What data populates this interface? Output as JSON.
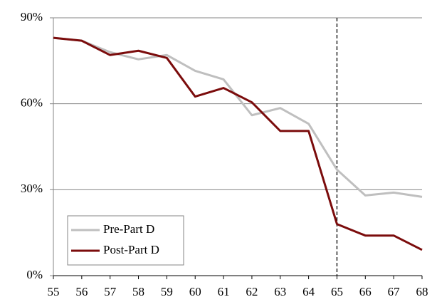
{
  "chart_data": {
    "type": "line",
    "x": [
      55,
      56,
      57,
      58,
      59,
      60,
      61,
      62,
      63,
      64,
      65,
      66,
      67,
      68
    ],
    "series": [
      {
        "name": "Pre-Part D",
        "color": "#bfbfbf",
        "values": [
          83,
          82,
          78,
          75.5,
          77,
          71.5,
          68.5,
          56,
          58.5,
          53,
          37,
          28,
          29,
          27.5
        ]
      },
      {
        "name": "Post-Part D",
        "color": "#7b0c0c",
        "values": [
          83,
          82,
          77,
          78.5,
          76,
          62.5,
          65.5,
          60.5,
          50.5,
          50.5,
          18,
          14,
          14,
          9
        ]
      }
    ],
    "xlim": [
      55,
      68
    ],
    "xticks": [
      55,
      56,
      57,
      58,
      59,
      60,
      61,
      62,
      63,
      64,
      65,
      66,
      67,
      68
    ],
    "ylim": [
      0,
      90
    ],
    "yticks": [
      {
        "value": 0,
        "label": "0%"
      },
      {
        "value": 30,
        "label": "30%"
      },
      {
        "value": 60,
        "label": "60%"
      },
      {
        "value": 90,
        "label": "90%"
      }
    ],
    "grid": true,
    "legend": "lower left",
    "vline": 65
  }
}
